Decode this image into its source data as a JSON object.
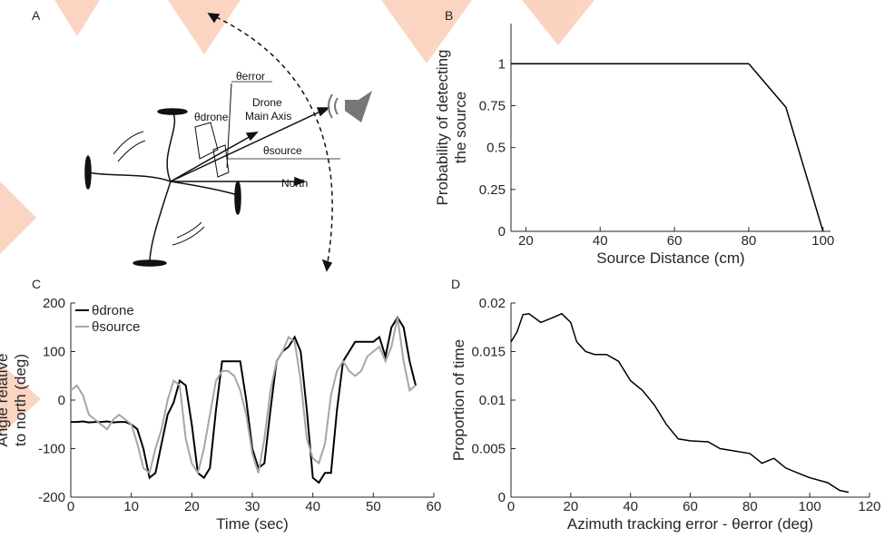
{
  "diagram": {
    "panel": "A",
    "theta_error": "θerror",
    "theta_drone": "θdrone",
    "drone_axis": [
      "Drone",
      "Main Axis"
    ],
    "theta_source": "θsource",
    "north": "North"
  },
  "chart_data": [
    {
      "type": "line",
      "panel": "B",
      "xlabel": "Source Distance (cm)",
      "ylabel": [
        "Probability of detecting",
        "the source"
      ],
      "x": [
        16,
        80,
        90,
        100
      ],
      "values": [
        1,
        1,
        0.74,
        0
      ],
      "color": "#000000",
      "xlim": [
        16,
        102
      ],
      "xticks": [
        20,
        40,
        60,
        80,
        100
      ],
      "ylim": [
        0,
        1.24
      ],
      "yticks": [
        0,
        0.25,
        0.5,
        0.75,
        1
      ]
    },
    {
      "type": "line",
      "panel": "C",
      "xlabel": "Time (sec)",
      "ylabel": [
        "Angle relative",
        "to north (deg)"
      ],
      "legend": "upper left",
      "x": [
        0,
        1,
        2,
        3,
        4,
        5,
        6,
        7,
        8,
        9,
        10,
        11,
        12,
        13,
        14,
        15,
        16,
        17,
        18,
        19,
        20,
        21,
        22,
        23,
        24,
        25,
        26,
        27,
        28,
        29,
        30,
        31,
        32,
        33,
        34,
        35,
        36,
        37,
        38,
        39,
        40,
        41,
        42,
        43,
        44,
        45,
        46,
        47,
        48,
        49,
        50,
        51,
        52,
        53,
        54,
        55,
        56,
        57
      ],
      "series": [
        {
          "name": "θdrone",
          "color": "#000000",
          "values": [
            -45,
            -45,
            -44,
            -46,
            -45,
            -45,
            -44,
            -46,
            -45,
            -45,
            -50,
            -60,
            -100,
            -160,
            -150,
            -90,
            -30,
            -5,
            40,
            30,
            -50,
            -150,
            -160,
            -140,
            -20,
            80,
            80,
            80,
            80,
            0,
            -100,
            -140,
            -130,
            -20,
            80,
            100,
            110,
            130,
            100,
            -20,
            -160,
            -170,
            -150,
            -150,
            -20,
            80,
            100,
            120,
            120,
            120,
            120,
            130,
            90,
            150,
            170,
            150,
            80,
            30
          ]
        },
        {
          "name": "θsource",
          "color": "#a6a6a6",
          "values": [
            20,
            30,
            10,
            -30,
            -40,
            -50,
            -60,
            -40,
            -30,
            -40,
            -50,
            -90,
            -140,
            -150,
            -100,
            -60,
            0,
            40,
            30,
            -80,
            -130,
            -150,
            -100,
            -30,
            40,
            60,
            60,
            50,
            20,
            -30,
            -110,
            -150,
            -80,
            20,
            80,
            100,
            130,
            120,
            40,
            -80,
            -120,
            -130,
            -90,
            10,
            60,
            80,
            60,
            50,
            60,
            90,
            100,
            110,
            80,
            110,
            170,
            80,
            20,
            30
          ]
        }
      ],
      "xlim": [
        0,
        60
      ],
      "xticks": [
        0,
        10,
        20,
        30,
        40,
        50,
        60
      ],
      "ylim": [
        -200,
        200
      ],
      "yticks": [
        -200,
        -100,
        0,
        100,
        200
      ]
    },
    {
      "type": "line",
      "panel": "D",
      "xlabel": "Azimuth tracking error - θerror (deg)",
      "ylabel": [
        "Proportion of time"
      ],
      "x": [
        0,
        2,
        4,
        6,
        10,
        14,
        17,
        20,
        22,
        25,
        28,
        32,
        36,
        40,
        44,
        48,
        52,
        56,
        60,
        66,
        70,
        74,
        80,
        84,
        88,
        92,
        96,
        100,
        106,
        110,
        113
      ],
      "values": [
        0.016,
        0.017,
        0.0188,
        0.0189,
        0.018,
        0.0185,
        0.0189,
        0.018,
        0.016,
        0.015,
        0.0147,
        0.0147,
        0.014,
        0.012,
        0.011,
        0.0095,
        0.0075,
        0.006,
        0.0058,
        0.0057,
        0.005,
        0.0048,
        0.0045,
        0.0035,
        0.004,
        0.003,
        0.0025,
        0.002,
        0.0015,
        0.0007,
        0.0005
      ],
      "color": "#000000",
      "xlim": [
        0,
        120
      ],
      "xticks": [
        0,
        20,
        40,
        60,
        80,
        100,
        120
      ],
      "ylim": [
        0,
        0.02
      ],
      "yticks": [
        0,
        0.005,
        0.01,
        0.015,
        0.02
      ]
    }
  ]
}
